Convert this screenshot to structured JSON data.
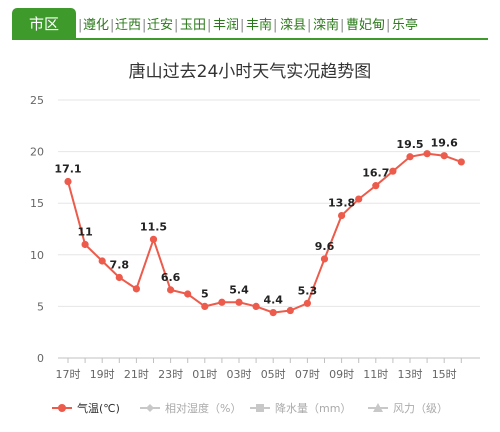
{
  "tabs": {
    "active": "市区",
    "items": [
      "遵化",
      "迁西",
      "迁安",
      "玉田",
      "丰润",
      "丰南",
      "滦县",
      "滦南",
      "曹妃甸",
      "乐亭"
    ]
  },
  "colors": {
    "accent": "#3d9a2b",
    "series": "#ec5b4b",
    "inactive": "#c8c8c8"
  },
  "chart_data": {
    "type": "line",
    "title": "唐山过去24小时天气实况趋势图",
    "x": [
      "17时",
      "18时",
      "19时",
      "20时",
      "21时",
      "22时",
      "23时",
      "00时",
      "01时",
      "02时",
      "03时",
      "04时",
      "05时",
      "06时",
      "07时",
      "08时",
      "09时",
      "10时",
      "11时",
      "12时",
      "13时",
      "14时",
      "15时",
      "16时"
    ],
    "xtick_labels": [
      "17时",
      "19时",
      "21时",
      "23时",
      "01时",
      "03时",
      "05时",
      "07时",
      "09时",
      "11时",
      "13时",
      "15时"
    ],
    "ylim": [
      0,
      25
    ],
    "yticks": [
      0,
      5,
      10,
      15,
      20,
      25
    ],
    "grid": true,
    "legend_placement": "bottom",
    "series": [
      {
        "name": "气温(℃)",
        "values": [
          17.1,
          11,
          9.4,
          7.8,
          6.7,
          11.5,
          6.6,
          6.2,
          5,
          5.4,
          5.4,
          5,
          4.4,
          4.6,
          5.3,
          9.6,
          13.8,
          15.4,
          16.7,
          18.1,
          19.5,
          19.8,
          19.6,
          19
        ],
        "labels": [
          "17.1",
          "11",
          "",
          "7.8",
          "",
          "11.5",
          "6.6",
          "",
          "5",
          "",
          "5.4",
          "",
          "4.4",
          "",
          "5.3",
          "9.6",
          "13.8",
          "",
          "16.7",
          "",
          "19.5",
          "",
          "19.6",
          ""
        ]
      }
    ],
    "legend": [
      {
        "label": "气温(℃)",
        "active": true
      },
      {
        "label": "相对湿度（%）",
        "active": false
      },
      {
        "label": "降水量（mm）",
        "active": false
      },
      {
        "label": "风力（级）",
        "active": false
      }
    ]
  }
}
